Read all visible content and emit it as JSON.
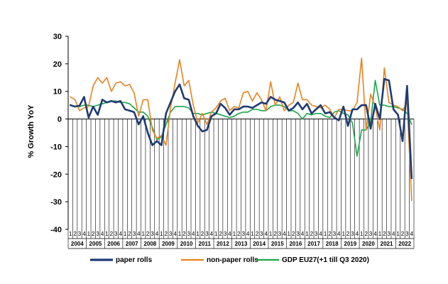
{
  "chart_data": {
    "type": "line",
    "title": "",
    "xlabel": "",
    "ylabel": "% Growth YoY",
    "ylim": [
      -40,
      30
    ],
    "yticks": [
      30,
      20,
      10,
      0,
      -10,
      -20,
      -30,
      -40
    ],
    "grid": false,
    "legend_position": "bottom",
    "quarter_labels": [
      "1",
      "2",
      "3",
      "4"
    ],
    "years": [
      "2004",
      "2005",
      "2006",
      "2007",
      "2008",
      "2009",
      "2010",
      "2011",
      "2012",
      "2013",
      "2014",
      "2015",
      "2016",
      "2017",
      "2018",
      "2019",
      "2020",
      "2021",
      "2022"
    ],
    "x_note": "quarterly values, 2004 Q1 through 2022 Q4",
    "series": [
      {
        "name": "paper rolls",
        "color": "#1f3b73",
        "width": 2.6,
        "values": [
          5,
          4.5,
          4.8,
          8,
          0.5,
          4.5,
          1.5,
          7,
          6,
          6.5,
          6,
          6.5,
          3.5,
          3,
          2.5,
          -2,
          1,
          -5,
          -9.5,
          -8,
          -9.5,
          2,
          6,
          10,
          12.5,
          7.5,
          7,
          1,
          -2.5,
          -4.5,
          -4,
          1,
          2,
          5.5,
          4,
          1.5,
          3.5,
          3.5,
          4.5,
          4.5,
          4,
          5,
          6,
          5.5,
          8,
          7,
          6.5,
          6,
          3,
          4,
          6,
          3.5,
          5.5,
          2,
          3.5,
          5,
          2,
          2.5,
          0.5,
          -0.5,
          4.5,
          -2.5,
          3.5,
          3.5,
          5,
          5,
          -3.5,
          5.5,
          0,
          14.5,
          14,
          3.5,
          1.5,
          -8,
          12,
          -21.5
        ]
      },
      {
        "name": "non-paper rolls",
        "color": "#e8821e",
        "width": 1.6,
        "values": [
          8,
          7,
          3,
          4,
          4.5,
          12,
          15,
          13,
          15,
          10,
          13,
          13.5,
          12,
          12.5,
          9.5,
          1,
          7,
          7,
          -4,
          -7,
          -6,
          -9.5,
          4,
          13,
          21.5,
          12,
          14,
          5,
          -1.5,
          2,
          -2,
          2.5,
          4,
          6.5,
          7.5,
          3,
          4.5,
          4,
          9.5,
          10,
          6.5,
          9.5,
          7,
          3,
          13.5,
          5,
          8,
          3,
          5,
          6,
          13,
          7,
          7,
          5,
          4.5,
          4,
          5,
          3.5,
          0.5,
          3.5,
          3.5,
          3,
          3,
          6,
          22,
          -4,
          9,
          4.5,
          -4,
          18.5,
          6,
          5,
          4.5,
          3,
          6,
          -29.5
        ]
      },
      {
        "name": "GDP EU27(+1 till Q3 2020)",
        "color": "#1aa64a",
        "width": 1.6,
        "values": [
          5,
          4.5,
          4.5,
          5,
          5,
          4.5,
          5,
          5.5,
          6,
          6.5,
          6.5,
          6,
          6,
          5.5,
          4,
          2.5,
          2.5,
          1,
          -3,
          -7.5,
          -6.5,
          -2,
          2.5,
          4.5,
          4.5,
          4.5,
          4,
          2,
          2,
          1.5,
          2,
          2.5,
          2,
          1.5,
          1,
          0.5,
          1,
          2,
          2.5,
          2.5,
          3.5,
          3.5,
          3,
          3,
          4.5,
          5,
          5,
          4.5,
          3,
          3,
          2,
          0,
          2,
          1.5,
          2,
          2,
          1,
          0.5,
          2.5,
          3,
          2,
          1.5,
          -1.5,
          -13.5,
          -4,
          -4,
          -1,
          14,
          5,
          5,
          4.5,
          4.5,
          4,
          3.5,
          2,
          -2
        ]
      }
    ]
  }
}
